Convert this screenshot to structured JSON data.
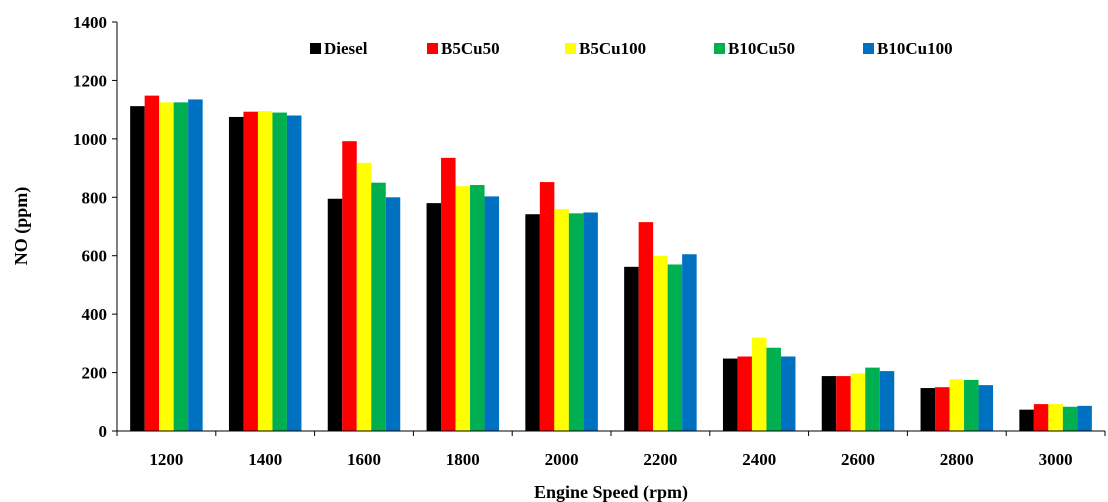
{
  "chart_data": {
    "type": "bar",
    "xlabel": "Engine Speed (rpm)",
    "ylabel": "NO (ppm)",
    "ylim": [
      0,
      1400
    ],
    "yticks": [
      0,
      200,
      400,
      600,
      800,
      1000,
      1200,
      1400
    ],
    "grid": false,
    "legend_position": "top",
    "categories": [
      "1200",
      "1400",
      "1600",
      "1800",
      "2000",
      "2200",
      "2400",
      "2600",
      "2800",
      "3000"
    ],
    "series": [
      {
        "name": "Diesel",
        "color": "#000000",
        "values": [
          1112,
          1075,
          795,
          780,
          742,
          562,
          248,
          188,
          147,
          73
        ]
      },
      {
        "name": "B5Cu50",
        "color": "#ff0000",
        "values": [
          1148,
          1093,
          992,
          935,
          852,
          715,
          255,
          188,
          150,
          92
        ]
      },
      {
        "name": "B5Cu100",
        "color": "#ffff00",
        "values": [
          1125,
          1095,
          918,
          838,
          760,
          600,
          320,
          197,
          177,
          92
        ]
      },
      {
        "name": "B10Cu50",
        "color": "#00b050",
        "values": [
          1125,
          1090,
          850,
          842,
          745,
          570,
          285,
          217,
          175,
          83
        ]
      },
      {
        "name": "B10Cu100",
        "color": "#0070c0",
        "values": [
          1135,
          1080,
          800,
          803,
          748,
          605,
          255,
          205,
          157,
          86
        ]
      }
    ]
  }
}
